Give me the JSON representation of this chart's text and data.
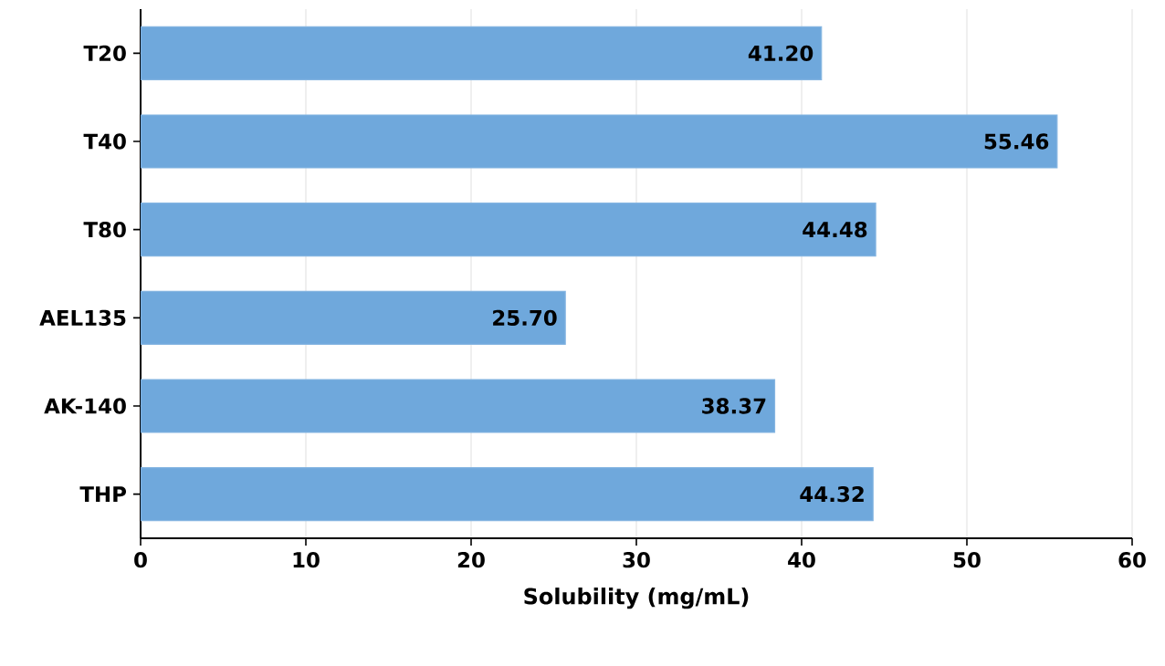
{
  "chart_data": {
    "type": "bar",
    "orientation": "horizontal",
    "xlabel": "Solubility (mg/mL)",
    "categories": [
      "T20",
      "T40",
      "T80",
      "AEL135",
      "AK-140",
      "THP"
    ],
    "values": [
      41.2,
      55.46,
      44.48,
      25.7,
      38.37,
      44.32
    ],
    "value_labels": [
      "41.20",
      "55.46",
      "44.48",
      "25.70",
      "38.37",
      "44.32"
    ],
    "color": "#6fa8dc",
    "xlim": [
      0,
      60
    ],
    "xticks": [
      0,
      10,
      20,
      30,
      40,
      50,
      60
    ],
    "grid": "x"
  }
}
